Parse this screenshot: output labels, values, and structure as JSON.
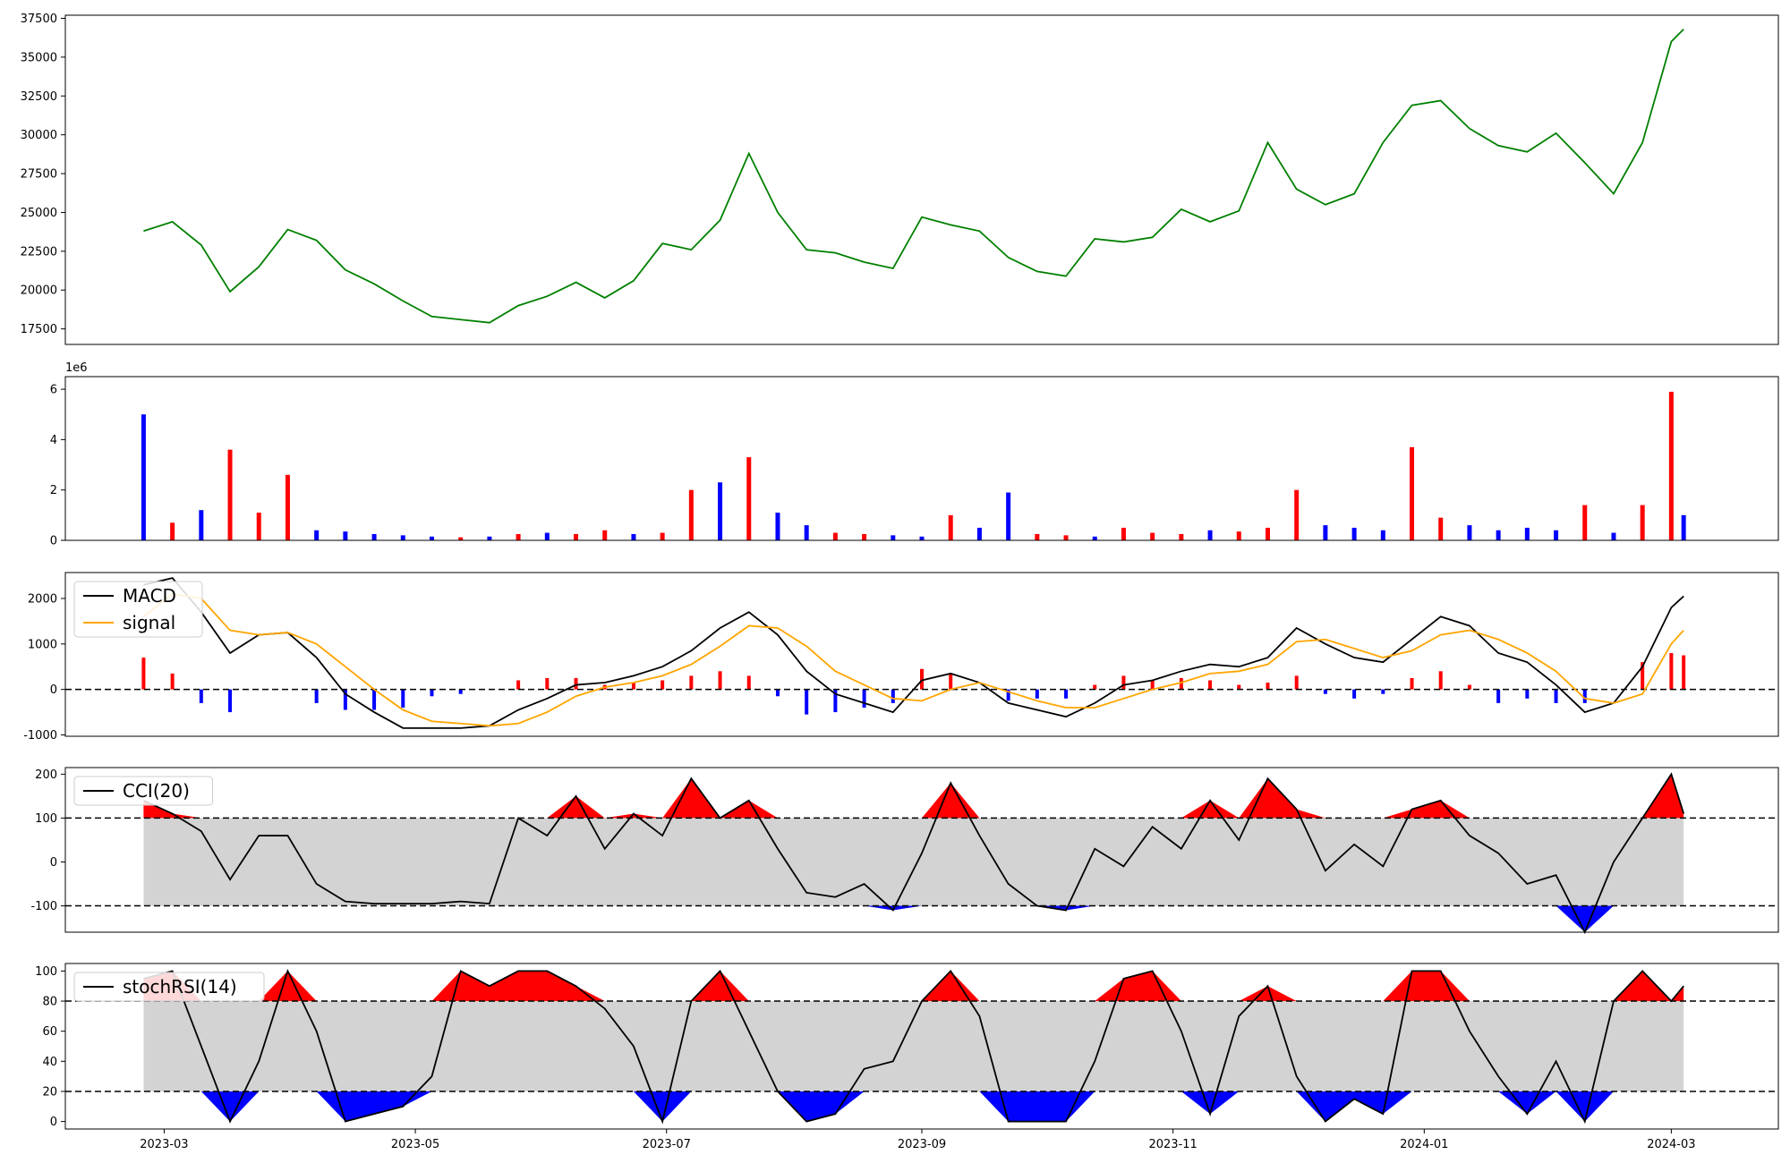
{
  "colors": {
    "price": "#008000",
    "up": "#ff0000",
    "down": "#0000ff",
    "macd": "#000000",
    "signal": "#ffa500",
    "band": "#d3d3d3",
    "axis": "#000000"
  },
  "x_ticks": [
    "2023-03",
    "2023-05",
    "2023-07",
    "2023-09",
    "2023-11",
    "2024-01",
    "2024-03"
  ],
  "chart_data": [
    {
      "type": "line",
      "name": "price",
      "ylim": [
        16500,
        37700
      ],
      "yticks": [
        "17500",
        "20000",
        "22500",
        "25000",
        "27500",
        "30000",
        "32500",
        "35000",
        "37500"
      ],
      "x": [
        "2023-02-24",
        "2023-03-03",
        "2023-03-10",
        "2023-03-17",
        "2023-03-24",
        "2023-03-31",
        "2023-04-07",
        "2023-04-14",
        "2023-04-21",
        "2023-04-28",
        "2023-05-05",
        "2023-05-12",
        "2023-05-19",
        "2023-05-26",
        "2023-06-02",
        "2023-06-09",
        "2023-06-16",
        "2023-06-23",
        "2023-06-30",
        "2023-07-07",
        "2023-07-14",
        "2023-07-21",
        "2023-07-28",
        "2023-08-04",
        "2023-08-11",
        "2023-08-18",
        "2023-08-25",
        "2023-09-01",
        "2023-09-08",
        "2023-09-15",
        "2023-09-22",
        "2023-09-29",
        "2023-10-06",
        "2023-10-13",
        "2023-10-20",
        "2023-10-27",
        "2023-11-03",
        "2023-11-10",
        "2023-11-17",
        "2023-11-24",
        "2023-12-01",
        "2023-12-08",
        "2023-12-15",
        "2023-12-22",
        "2023-12-29",
        "2024-01-05",
        "2024-01-12",
        "2024-01-19",
        "2024-01-26",
        "2024-02-02",
        "2024-02-09",
        "2024-02-16",
        "2024-02-23",
        "2024-03-01",
        "2024-03-04"
      ],
      "y": [
        23800,
        24400,
        22900,
        19900,
        21500,
        23900,
        23200,
        21300,
        20400,
        19300,
        18300,
        18100,
        17900,
        19000,
        19600,
        20500,
        19500,
        20600,
        23000,
        22600,
        24500,
        28800,
        25000,
        22600,
        22400,
        21800,
        21400,
        24700,
        24200,
        23800,
        22100,
        21200,
        20900,
        23300,
        23100,
        23400,
        25200,
        24400,
        25100,
        29500,
        26500,
        25500,
        26200,
        29500,
        31900,
        32200,
        30400,
        29300,
        28900,
        30100,
        28200,
        26200,
        29500,
        36000,
        36800
      ]
    },
    {
      "type": "bar",
      "name": "volume",
      "ylim": [
        0,
        6500000
      ],
      "yticks": [
        "0",
        "2",
        "4",
        "6"
      ],
      "ytick_values": [
        0,
        2,
        4,
        6
      ],
      "scale_label": "1e6",
      "x": [
        "2023-02-24",
        "2023-03-03",
        "2023-03-10",
        "2023-03-17",
        "2023-03-24",
        "2023-03-31",
        "2023-04-07",
        "2023-04-14",
        "2023-04-21",
        "2023-04-28",
        "2023-05-05",
        "2023-05-12",
        "2023-05-19",
        "2023-05-26",
        "2023-06-02",
        "2023-06-09",
        "2023-06-16",
        "2023-06-23",
        "2023-06-30",
        "2023-07-07",
        "2023-07-14",
        "2023-07-21",
        "2023-07-28",
        "2023-08-04",
        "2023-08-11",
        "2023-08-18",
        "2023-08-25",
        "2023-09-01",
        "2023-09-08",
        "2023-09-15",
        "2023-09-22",
        "2023-09-29",
        "2023-10-06",
        "2023-10-13",
        "2023-10-20",
        "2023-10-27",
        "2023-11-03",
        "2023-11-10",
        "2023-11-17",
        "2023-11-24",
        "2023-12-01",
        "2023-12-08",
        "2023-12-15",
        "2023-12-22",
        "2023-12-29",
        "2024-01-05",
        "2024-01-12",
        "2024-01-19",
        "2024-01-26",
        "2024-02-02",
        "2024-02-09",
        "2024-02-16",
        "2024-02-23",
        "2024-03-01",
        "2024-03-04"
      ],
      "values": [
        5000000,
        700000,
        1200000,
        3600000,
        1100000,
        2600000,
        400000,
        350000,
        250000,
        200000,
        150000,
        120000,
        150000,
        250000,
        300000,
        250000,
        400000,
        250000,
        300000,
        2000000,
        2300000,
        3300000,
        1100000,
        600000,
        300000,
        250000,
        200000,
        150000,
        1000000,
        500000,
        1900000,
        250000,
        200000,
        150000,
        500000,
        300000,
        250000,
        400000,
        350000,
        500000,
        2000000,
        600000,
        500000,
        400000,
        3700000,
        900000,
        600000,
        400000,
        500000,
        400000,
        1400000,
        300000,
        1400000,
        5900000,
        1000000
      ],
      "colors": [
        "down",
        "up",
        "down",
        "up",
        "up",
        "up",
        "down",
        "down",
        "down",
        "down",
        "down",
        "up",
        "down",
        "up",
        "down",
        "up",
        "up",
        "down",
        "up",
        "up",
        "down",
        "up",
        "down",
        "down",
        "up",
        "up",
        "down",
        "down",
        "up",
        "down",
        "down",
        "up",
        "up",
        "down",
        "up",
        "up",
        "up",
        "down",
        "up",
        "up",
        "up",
        "down",
        "down",
        "down",
        "up",
        "up",
        "down",
        "down",
        "down",
        "down",
        "up",
        "down",
        "up",
        "up",
        "down"
      ]
    },
    {
      "type": "line",
      "name": "macd",
      "ylim": [
        -1030,
        2570
      ],
      "yticks": [
        "-1000",
        "0",
        "1000",
        "2000"
      ],
      "ytick_values": [
        -1000,
        0,
        1000,
        2000
      ],
      "reference_lines": [
        0
      ],
      "legend": [
        "MACD",
        "signal"
      ],
      "legend_position": "upper left",
      "x": [
        "2023-02-24",
        "2023-03-03",
        "2023-03-10",
        "2023-03-17",
        "2023-03-24",
        "2023-03-31",
        "2023-04-07",
        "2023-04-14",
        "2023-04-21",
        "2023-04-28",
        "2023-05-05",
        "2023-05-12",
        "2023-05-19",
        "2023-05-26",
        "2023-06-02",
        "2023-06-09",
        "2023-06-16",
        "2023-06-23",
        "2023-06-30",
        "2023-07-07",
        "2023-07-14",
        "2023-07-21",
        "2023-07-28",
        "2023-08-04",
        "2023-08-11",
        "2023-08-18",
        "2023-08-25",
        "2023-09-01",
        "2023-09-08",
        "2023-09-15",
        "2023-09-22",
        "2023-09-29",
        "2023-10-06",
        "2023-10-13",
        "2023-10-20",
        "2023-10-27",
        "2023-11-03",
        "2023-11-10",
        "2023-11-17",
        "2023-11-24",
        "2023-12-01",
        "2023-12-08",
        "2023-12-15",
        "2023-12-22",
        "2023-12-29",
        "2024-01-05",
        "2024-01-12",
        "2024-01-19",
        "2024-01-26",
        "2024-02-02",
        "2024-02-09",
        "2024-02-16",
        "2024-02-23",
        "2024-03-01",
        "2024-03-04"
      ],
      "series": [
        {
          "name": "MACD",
          "color": "macd",
          "values": [
            2300,
            2450,
            1700,
            800,
            1200,
            1250,
            700,
            -100,
            -500,
            -850,
            -850,
            -850,
            -800,
            -450,
            -200,
            100,
            150,
            300,
            500,
            850,
            1350,
            1700,
            1200,
            400,
            -100,
            -300,
            -500,
            200,
            350,
            150,
            -300,
            -450,
            -600,
            -300,
            100,
            200,
            400,
            550,
            500,
            700,
            1350,
            1000,
            700,
            600,
            1100,
            1600,
            1400,
            800,
            600,
            100,
            -500,
            -300,
            500,
            1800,
            2050
          ]
        },
        {
          "name": "signal",
          "color": "signal",
          "values": [
            1600,
            2100,
            2000,
            1300,
            1200,
            1250,
            1000,
            500,
            0,
            -450,
            -700,
            -750,
            -800,
            -750,
            -500,
            -150,
            50,
            150,
            300,
            550,
            950,
            1400,
            1350,
            950,
            400,
            100,
            -200,
            -250,
            0,
            150,
            -50,
            -250,
            -400,
            -400,
            -200,
            0,
            150,
            350,
            400,
            550,
            1050,
            1100,
            900,
            700,
            850,
            1200,
            1300,
            1100,
            800,
            400,
            -200,
            -300,
            -100,
            1000,
            1300
          ]
        }
      ],
      "histogram": [
        700,
        350,
        -300,
        -500,
        0,
        0,
        -300,
        -450,
        -450,
        -400,
        -150,
        -100,
        0,
        200,
        250,
        250,
        100,
        150,
        200,
        300,
        400,
        300,
        -150,
        -550,
        -500,
        -400,
        -300,
        450,
        350,
        0,
        -250,
        -200,
        -200,
        100,
        300,
        200,
        250,
        200,
        100,
        150,
        300,
        -100,
        -200,
        -100,
        250,
        400,
        100,
        -300,
        -200,
        -300,
        -300,
        0,
        600,
        800,
        750
      ]
    },
    {
      "type": "area",
      "name": "cci",
      "ylim": [
        -160,
        215
      ],
      "yticks": [
        "-100",
        "0",
        "100",
        "200"
      ],
      "ytick_values": [
        -100,
        0,
        100,
        200
      ],
      "bands": [
        -100,
        100
      ],
      "legend": [
        "CCI(20)"
      ],
      "legend_position": "upper left",
      "x": [
        "2023-02-24",
        "2023-03-03",
        "2023-03-10",
        "2023-03-17",
        "2023-03-24",
        "2023-03-31",
        "2023-04-07",
        "2023-04-14",
        "2023-04-21",
        "2023-04-28",
        "2023-05-05",
        "2023-05-12",
        "2023-05-19",
        "2023-05-26",
        "2023-06-02",
        "2023-06-09",
        "2023-06-16",
        "2023-06-23",
        "2023-06-30",
        "2023-07-07",
        "2023-07-14",
        "2023-07-21",
        "2023-07-28",
        "2023-08-04",
        "2023-08-11",
        "2023-08-18",
        "2023-08-25",
        "2023-09-01",
        "2023-09-08",
        "2023-09-15",
        "2023-09-22",
        "2023-09-29",
        "2023-10-06",
        "2023-10-13",
        "2023-10-20",
        "2023-10-27",
        "2023-11-03",
        "2023-11-10",
        "2023-11-17",
        "2023-11-24",
        "2023-12-01",
        "2023-12-08",
        "2023-12-15",
        "2023-12-22",
        "2023-12-29",
        "2024-01-05",
        "2024-01-12",
        "2024-01-19",
        "2024-01-26",
        "2024-02-02",
        "2024-02-09",
        "2024-02-16",
        "2024-02-23",
        "2024-03-01",
        "2024-03-04"
      ],
      "series": [
        {
          "name": "CCI(20)",
          "values": [
            140,
            110,
            70,
            -40,
            60,
            60,
            -50,
            -90,
            -95,
            -95,
            -95,
            -90,
            -95,
            100,
            60,
            150,
            30,
            110,
            60,
            190,
            100,
            140,
            30,
            -70,
            -80,
            -50,
            -110,
            20,
            180,
            60,
            -50,
            -100,
            -110,
            30,
            -10,
            80,
            30,
            140,
            50,
            190,
            120,
            -20,
            40,
            -10,
            120,
            140,
            60,
            20,
            -50,
            -30,
            -160,
            0,
            100,
            200,
            110
          ]
        }
      ]
    },
    {
      "type": "area",
      "name": "stochrsi",
      "ylim": [
        -5,
        105
      ],
      "yticks": [
        "0",
        "20",
        "40",
        "60",
        "80",
        "100"
      ],
      "ytick_values": [
        0,
        20,
        40,
        60,
        80,
        100
      ],
      "bands": [
        20,
        80
      ],
      "legend": [
        "stochRSI(14)"
      ],
      "legend_position": "upper left",
      "x": [
        "2023-02-24",
        "2023-03-03",
        "2023-03-10",
        "2023-03-17",
        "2023-03-24",
        "2023-03-31",
        "2023-04-07",
        "2023-04-14",
        "2023-04-21",
        "2023-04-28",
        "2023-05-05",
        "2023-05-12",
        "2023-05-19",
        "2023-05-26",
        "2023-06-02",
        "2023-06-09",
        "2023-06-16",
        "2023-06-23",
        "2023-06-30",
        "2023-07-07",
        "2023-07-14",
        "2023-07-21",
        "2023-07-28",
        "2023-08-04",
        "2023-08-11",
        "2023-08-18",
        "2023-08-25",
        "2023-09-01",
        "2023-09-08",
        "2023-09-15",
        "2023-09-22",
        "2023-09-29",
        "2023-10-06",
        "2023-10-13",
        "2023-10-20",
        "2023-10-27",
        "2023-11-03",
        "2023-11-10",
        "2023-11-17",
        "2023-11-24",
        "2023-12-01",
        "2023-12-08",
        "2023-12-15",
        "2023-12-22",
        "2023-12-29",
        "2024-01-05",
        "2024-01-12",
        "2024-01-19",
        "2024-01-26",
        "2024-02-02",
        "2024-02-09",
        "2024-02-16",
        "2024-02-23",
        "2024-03-01",
        "2024-03-04"
      ],
      "series": [
        {
          "name": "stochRSI(14)",
          "values": [
            95,
            100,
            50,
            0,
            40,
            100,
            60,
            0,
            5,
            10,
            30,
            100,
            90,
            100,
            100,
            90,
            75,
            50,
            0,
            80,
            100,
            60,
            20,
            0,
            5,
            35,
            40,
            80,
            100,
            70,
            0,
            0,
            0,
            40,
            95,
            100,
            60,
            5,
            70,
            90,
            30,
            0,
            15,
            5,
            100,
            100,
            60,
            30,
            5,
            40,
            0,
            80,
            100,
            80,
            90
          ]
        }
      ]
    }
  ]
}
